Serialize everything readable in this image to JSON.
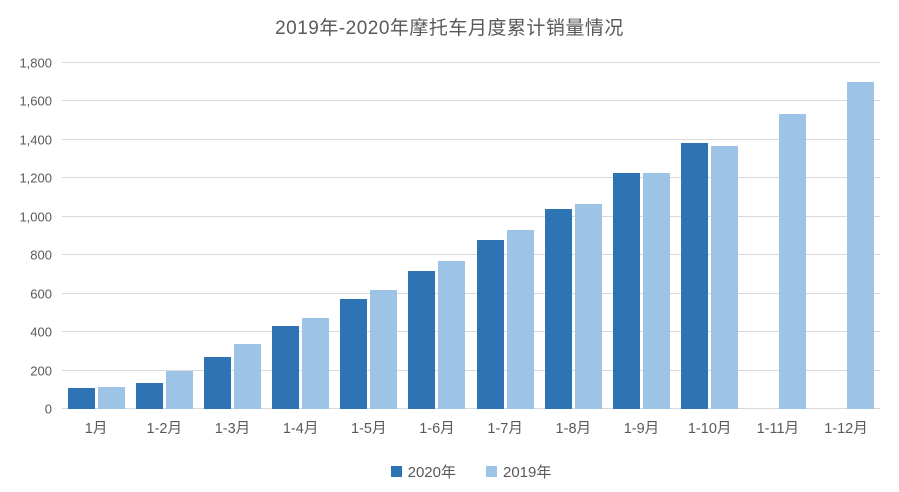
{
  "title": "2019年-2020年摩托车月度累计销量情况",
  "colors": {
    "series_2020": "#2e74b5",
    "series_2019": "#9dc3e6",
    "text": "#595959",
    "gridline": "#d9d9d9",
    "background": "#ffffff"
  },
  "chart_data": {
    "type": "bar",
    "title": "2019年-2020年摩托车月度累计销量情况",
    "categories": [
      "1月",
      "1-2月",
      "1-3月",
      "1-4月",
      "1-5月",
      "1-6月",
      "1-7月",
      "1-8月",
      "1-9月",
      "1-10月",
      "1-11月",
      "1-12月"
    ],
    "series": [
      {
        "name": "2020年",
        "color": "#2e74b5",
        "values": [
          110,
          135,
          270,
          430,
          570,
          720,
          880,
          1040,
          1230,
          1385,
          null,
          null
        ]
      },
      {
        "name": "2019年",
        "color": "#9dc3e6",
        "values": [
          115,
          200,
          340,
          475,
          620,
          770,
          930,
          1065,
          1230,
          1370,
          1535,
          1700
        ]
      }
    ],
    "xlabel": "",
    "ylabel": "",
    "ylim": [
      0,
      1800
    ],
    "ytick_interval": 200,
    "ytick_labels": [
      "0",
      "200",
      "400",
      "600",
      "800",
      "1,000",
      "1,200",
      "1,400",
      "1,600",
      "1,800"
    ],
    "grid": true,
    "legend_position": "bottom"
  }
}
